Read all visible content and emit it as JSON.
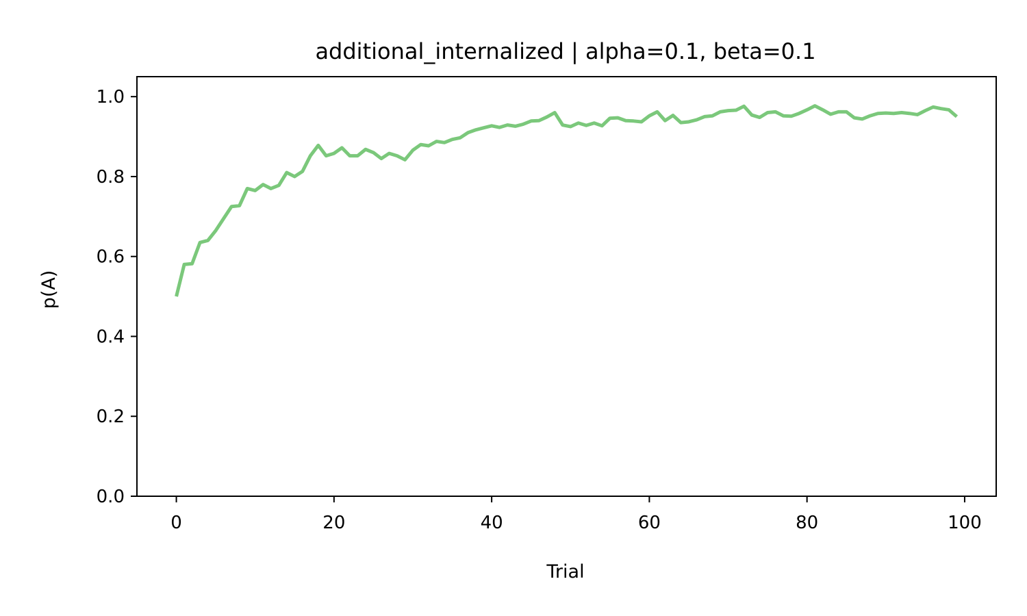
{
  "chart_data": {
    "type": "line",
    "title": "additional_internalized | alpha=0.1, beta=0.1",
    "xlabel": "Trial",
    "ylabel": "p(A)",
    "xlim": [
      -5,
      104
    ],
    "ylim": [
      0.0,
      1.05
    ],
    "xticks": [
      "0",
      "20",
      "40",
      "60",
      "80",
      "100"
    ],
    "yticks": [
      "0.0",
      "0.2",
      "0.4",
      "0.6",
      "0.8",
      "1.0"
    ],
    "grid": false,
    "legend": "none",
    "series": [
      {
        "color": "#7bc87b",
        "x": [
          0,
          1,
          2,
          3,
          4,
          5,
          6,
          7,
          8,
          9,
          10,
          11,
          12,
          13,
          14,
          15,
          16,
          17,
          18,
          19,
          20,
          21,
          22,
          23,
          24,
          25,
          26,
          27,
          28,
          29,
          30,
          31,
          32,
          33,
          34,
          35,
          36,
          37,
          38,
          39,
          40,
          41,
          42,
          43,
          44,
          45,
          46,
          47,
          48,
          49,
          50,
          51,
          52,
          53,
          54,
          55,
          56,
          57,
          58,
          59,
          60,
          61,
          62,
          63,
          64,
          65,
          66,
          67,
          68,
          69,
          70,
          71,
          72,
          73,
          74,
          75,
          76,
          77,
          78,
          79,
          80,
          81,
          82,
          83,
          84,
          85,
          86,
          87,
          88,
          89,
          90,
          91,
          92,
          93,
          94,
          95,
          96,
          97,
          98,
          99
        ],
        "y": [
          0.5,
          0.58,
          0.582,
          0.635,
          0.64,
          0.665,
          0.695,
          0.725,
          0.727,
          0.77,
          0.765,
          0.78,
          0.77,
          0.778,
          0.81,
          0.8,
          0.813,
          0.852,
          0.878,
          0.852,
          0.858,
          0.872,
          0.852,
          0.852,
          0.868,
          0.86,
          0.845,
          0.858,
          0.852,
          0.842,
          0.866,
          0.88,
          0.877,
          0.888,
          0.885,
          0.893,
          0.897,
          0.91,
          0.917,
          0.922,
          0.927,
          0.923,
          0.929,
          0.926,
          0.931,
          0.939,
          0.94,
          0.949,
          0.96,
          0.929,
          0.925,
          0.934,
          0.928,
          0.934,
          0.927,
          0.946,
          0.947,
          0.94,
          0.939,
          0.937,
          0.952,
          0.962,
          0.94,
          0.953,
          0.935,
          0.937,
          0.942,
          0.95,
          0.952,
          0.962,
          0.965,
          0.966,
          0.976,
          0.954,
          0.948,
          0.96,
          0.962,
          0.952,
          0.951,
          0.958,
          0.967,
          0.977,
          0.967,
          0.956,
          0.962,
          0.962,
          0.947,
          0.944,
          0.952,
          0.958,
          0.959,
          0.958,
          0.96,
          0.958,
          0.955,
          0.965,
          0.974,
          0.97,
          0.967,
          0.95
        ]
      }
    ]
  }
}
